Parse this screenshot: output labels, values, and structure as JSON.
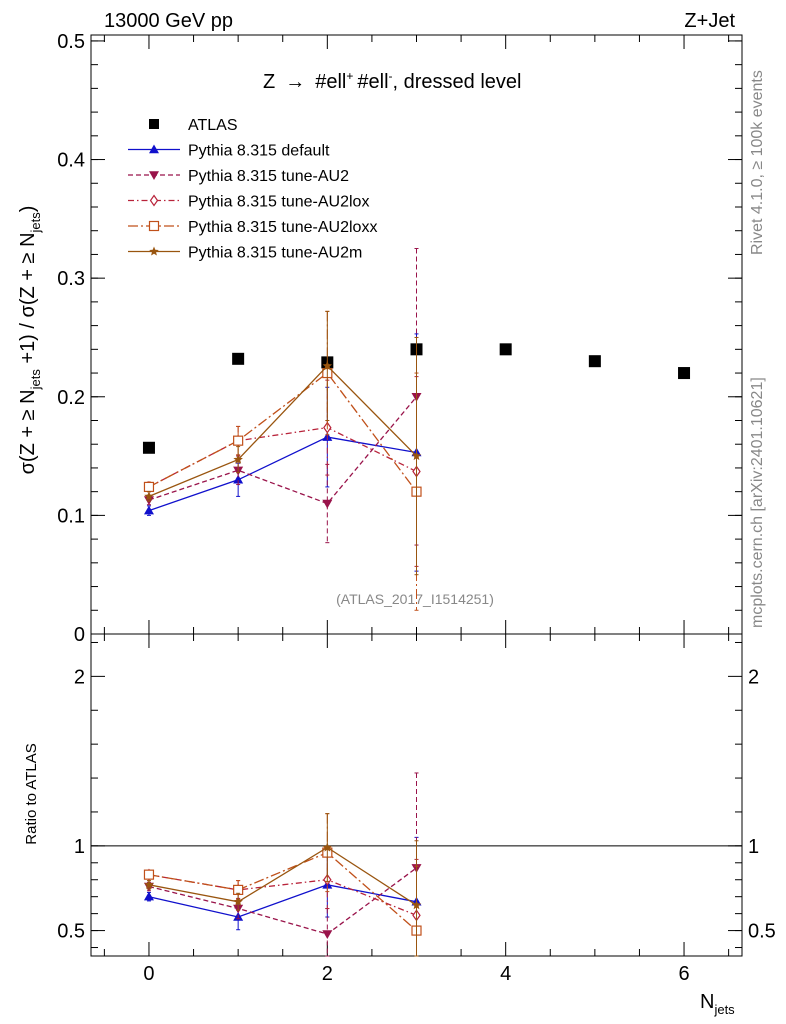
{
  "header": {
    "left": "13000 GeV pp",
    "right": "Z+Jet"
  },
  "side_text": {
    "rivet": "Rivet 4.1.0, ≥ 100k events",
    "mcplots": "mcplots.cern.ch [arXiv:2401.10621]"
  },
  "colors": {
    "atlas": "#000000",
    "default": "#1010cc",
    "au2": "#99134a",
    "au2lox": "#b8233a",
    "au2loxx": "#c0501a",
    "au2m": "#99550f",
    "axis": "#000000",
    "watermark": "#999999"
  },
  "chart_data": [
    {
      "type": "line",
      "panel": "main",
      "title": "Z → #ell⁺ #ell⁻, dressed level",
      "title_parts": {
        "a": "Z",
        "arrow": "→",
        "b": "#ell",
        "b_sup": "+",
        "c": "#ell",
        "c_sup": "-",
        "d": ", dressed level"
      },
      "watermark": "(ATLAS_2017_I1514251)",
      "ylabel": "σ(Z + ≥ N_jets +1) / σ(Z + ≥ N_jets)",
      "ylabel_parts": {
        "a": "σ(Z + ≥ N",
        "sub1": "jets",
        "b": " +1) / σ(Z + ≥ N",
        "sub2": "jets",
        "c": ")"
      },
      "xlim": [
        -0.65,
        6.65
      ],
      "ylim": [
        0,
        0.505
      ],
      "yticks": [
        0,
        0.1,
        0.2,
        0.3,
        0.4,
        0.5
      ],
      "ytick_labels": [
        "0",
        "0.1",
        "0.2",
        "0.3",
        "0.4",
        "0.5"
      ],
      "series": [
        {
          "key": "atlas",
          "name": "ATLAS",
          "marker": "square",
          "line": "none",
          "x": [
            0,
            1,
            2,
            3,
            4,
            5,
            6
          ],
          "values": [
            0.157,
            0.232,
            0.229,
            0.24,
            0.24,
            0.23,
            0.22
          ],
          "err": [
            0,
            0,
            0,
            0,
            0,
            0,
            0
          ]
        },
        {
          "key": "default",
          "name": "Pythia 8.315 default",
          "marker": "triangle-up",
          "line": "solid",
          "x": [
            0,
            1,
            2,
            3
          ],
          "values": [
            0.104,
            0.13,
            0.166,
            0.153
          ],
          "err": [
            0.004,
            0.014,
            0.042,
            0.1
          ]
        },
        {
          "key": "au2",
          "name": "Pythia 8.315 tune-AU2",
          "marker": "triangle-down",
          "line": "dashed",
          "x": [
            0,
            1,
            2,
            3
          ],
          "values": [
            0.113,
            0.138,
            0.11,
            0.2
          ],
          "err": [
            0.004,
            0.012,
            0.033,
            0.125
          ]
        },
        {
          "key": "au2lox",
          "name": "Pythia 8.315 tune-AU2lox",
          "marker": "diamond",
          "line": "dashdot",
          "x": [
            0,
            1,
            2,
            3
          ],
          "values": [
            0.124,
            0.163,
            0.174,
            0.137
          ],
          "err": [
            0.004,
            0.012,
            0.04,
            0.08
          ]
        },
        {
          "key": "au2loxx",
          "name": "Pythia 8.315 tune-AU2loxx",
          "marker": "square-open",
          "line": "dashdotlong",
          "x": [
            0,
            1,
            2,
            3
          ],
          "values": [
            0.124,
            0.163,
            0.22,
            0.12
          ],
          "err": [
            0.004,
            0.012,
            0.052,
            0.1
          ]
        },
        {
          "key": "au2m",
          "name": "Pythia 8.315 tune-AU2m",
          "marker": "star",
          "line": "solid",
          "x": [
            0,
            1,
            2,
            3
          ],
          "values": [
            0.116,
            0.147,
            0.226,
            0.15
          ],
          "err": [
            0.004,
            0.011,
            0.046,
            0.1
          ]
        }
      ]
    },
    {
      "type": "line",
      "panel": "ratio",
      "ylabel": "Ratio to ATLAS",
      "xlabel": "N_jets",
      "xlabel_parts": {
        "a": "N",
        "sub": "jets"
      },
      "xlim": [
        -0.65,
        6.65
      ],
      "ylim": [
        0.35,
        2.25
      ],
      "xticks": [
        0,
        2,
        4,
        6
      ],
      "xtick_labels": [
        "0",
        "2",
        "4",
        "6"
      ],
      "yticks": [
        0.5,
        1,
        2
      ],
      "ytick_labels": [
        "0.5",
        "1",
        "2"
      ],
      "reference_line": 1,
      "series": [
        {
          "key": "default",
          "x": [
            0,
            1,
            2,
            3
          ],
          "values": [
            0.7,
            0.58,
            0.77,
            0.67
          ],
          "err": [
            0.025,
            0.075,
            0.19,
            0.38
          ]
        },
        {
          "key": "au2",
          "x": [
            0,
            1,
            2,
            3
          ],
          "values": [
            0.76,
            0.63,
            0.48,
            0.87
          ],
          "err": [
            0.025,
            0.06,
            0.15,
            0.56
          ]
        },
        {
          "key": "au2lox",
          "x": [
            0,
            1,
            2,
            3
          ],
          "values": [
            0.83,
            0.74,
            0.8,
            0.59
          ],
          "err": [
            0.025,
            0.055,
            0.17,
            0.33
          ]
        },
        {
          "key": "au2loxx",
          "x": [
            0,
            1,
            2,
            3
          ],
          "values": [
            0.83,
            0.74,
            0.96,
            0.5
          ],
          "err": [
            0.025,
            0.055,
            0.23,
            0.38
          ]
        },
        {
          "key": "au2m",
          "x": [
            0,
            1,
            2,
            3
          ],
          "values": [
            0.77,
            0.67,
            0.99,
            0.65
          ],
          "err": [
            0.025,
            0.05,
            0.2,
            0.38
          ]
        }
      ]
    }
  ]
}
